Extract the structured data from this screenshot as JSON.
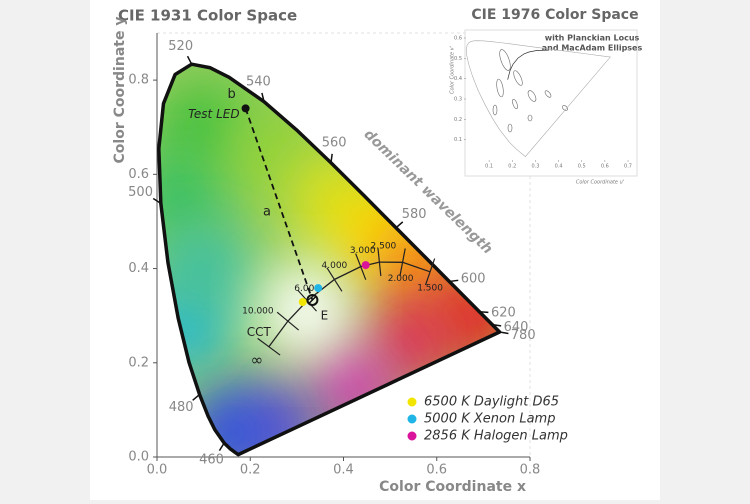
{
  "chart_data": [
    {
      "type": "chromaticity",
      "title": "CIE 1931 Color Space",
      "xlabel": "Color Coordinate x",
      "ylabel": "Color Coordinate y",
      "xlim": [
        0,
        0.8
      ],
      "ylim": [
        0,
        0.9
      ],
      "xticks": [
        {
          "value": 0,
          "label": "0.0"
        },
        0.2,
        0.4,
        0.6,
        0.8
      ],
      "yticks": [
        {
          "value": 0,
          "label": "0.0"
        },
        0.2,
        0.4,
        0.6,
        0.8
      ],
      "spectral_locus": {
        "wavelengths": [
          null,
          null,
          460,
          null,
          null,
          480,
          null,
          null,
          null,
          500,
          null,
          null,
          null,
          520,
          null,
          null,
          540,
          null,
          560,
          null,
          580,
          null,
          600,
          620,
          640,
          780
        ],
        "x": [
          0.1741,
          0.1566,
          0.144,
          0.1241,
          0.1096,
          0.0913,
          0.0687,
          0.0454,
          0.0235,
          0.0082,
          0.0039,
          0.0139,
          0.0389,
          0.0743,
          0.1142,
          0.1547,
          0.2296,
          0.3016,
          0.3731,
          0.4441,
          0.5125,
          0.5752,
          0.627,
          0.6915,
          0.719,
          0.7347
        ],
        "y": [
          0.005,
          0.0177,
          0.0297,
          0.0578,
          0.0868,
          0.1327,
          0.2007,
          0.295,
          0.4127,
          0.5384,
          0.6548,
          0.7502,
          0.812,
          0.8338,
          0.8262,
          0.8059,
          0.7543,
          0.6923,
          0.6245,
          0.5547,
          0.4866,
          0.4242,
          0.3725,
          0.3083,
          0.2809,
          0.2653
        ],
        "label": "dominant wavelength"
      },
      "planckian_locus": {
        "label": "CCT",
        "labels": [
          "∞",
          "10.000",
          "6.000",
          "4.000",
          "3.000",
          "2.500",
          "2.000",
          "1.500"
        ],
        "x": [
          0.2399,
          0.2807,
          0.3221,
          0.3805,
          0.4369,
          0.477,
          0.5267,
          0.5857
        ],
        "y": [
          0.2341,
          0.2884,
          0.3318,
          0.3768,
          0.4041,
          0.4137,
          0.4133,
          0.3931
        ]
      },
      "test_led": {
        "name": "Test LED",
        "label": "b",
        "x": 0.19,
        "y": 0.74
      },
      "white_point": {
        "name": "E",
        "x": 0.3333,
        "y": 0.3333
      },
      "line_label": "a",
      "series": [
        {
          "name": "6500 K Daylight D65",
          "color": "#f2e600",
          "x": [
            0.3127
          ],
          "y": [
            0.329
          ]
        },
        {
          "name": "5000 K Xenon Lamp",
          "color": "#1fb5e6",
          "x": [
            0.3457
          ],
          "y": [
            0.3585
          ]
        },
        {
          "name": "2856 K Halogen Lamp",
          "color": "#d9149a",
          "x": [
            0.4476
          ],
          "y": [
            0.4074
          ]
        }
      ],
      "legend": "lower right"
    },
    {
      "type": "chromaticity-uv",
      "title": "CIE 1976 Color Space",
      "subtitle": [
        "with Planckian Locus",
        "and MacAdam Ellipses"
      ],
      "xlabel": "Color Coordinate u'",
      "ylabel": "Color Coordinate v'",
      "xlim": [
        0,
        0.7
      ],
      "ylim": [
        0,
        0.6
      ],
      "xticks": [
        0.1,
        0.2,
        0.3,
        0.4,
        0.5,
        0.6,
        0.7
      ],
      "yticks": [
        0.1,
        0.2,
        0.3,
        0.4,
        0.5,
        0.6
      ]
    }
  ]
}
